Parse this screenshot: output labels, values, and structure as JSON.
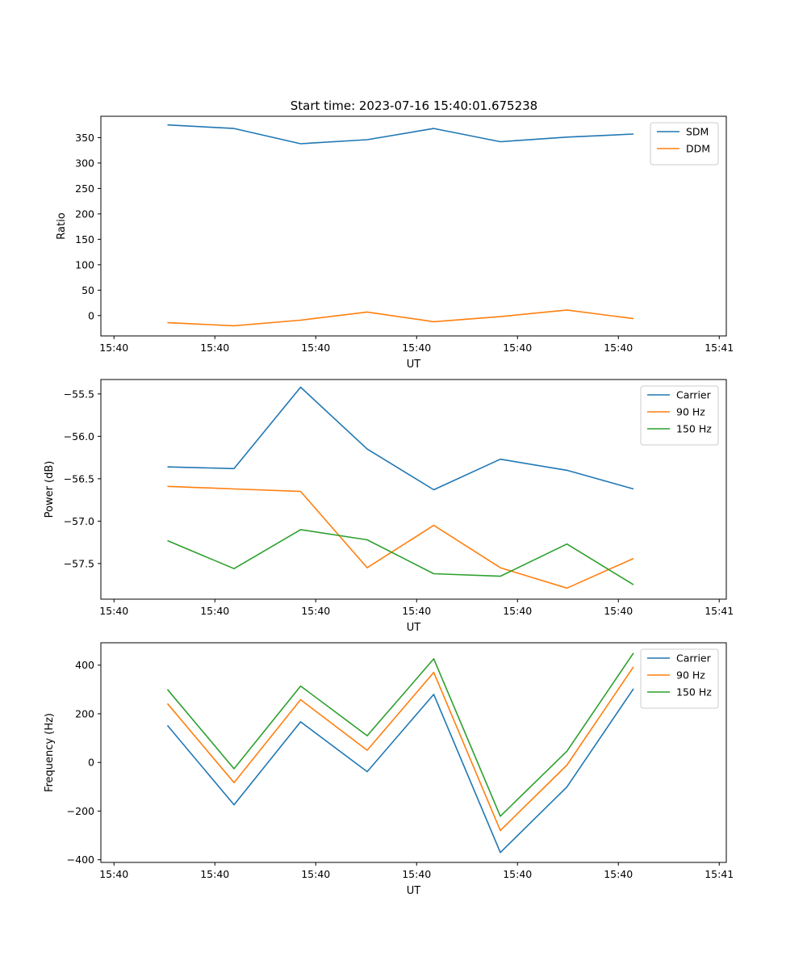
{
  "figure": {
    "title": "Start time: 2023-07-16 15:40:01.675238"
  },
  "chart_data": [
    {
      "type": "line",
      "title": "Start time: 2023-07-16 15:40:01.675238",
      "xlabel": "UT",
      "ylabel": "Ratio",
      "x": [
        0.66,
        1.32,
        1.98,
        2.64,
        3.3,
        3.96,
        4.62,
        5.28
      ],
      "xlim": [
        0,
        6.2
      ],
      "xticks": [
        0.13,
        1.13,
        2.13,
        3.13,
        4.13,
        5.13,
        6.13
      ],
      "xtick_labels": [
        "15:40",
        "15:40",
        "15:40",
        "15:40",
        "15:40",
        "15:40",
        "15:41"
      ],
      "ylim": [
        -40,
        392
      ],
      "yticks": [
        0,
        50,
        100,
        150,
        200,
        250,
        300,
        350
      ],
      "ytick_labels": [
        "0",
        "50",
        "100",
        "150",
        "200",
        "250",
        "300",
        "350"
      ],
      "legend_position": "top-right",
      "series": [
        {
          "name": "SDM",
          "color": "#1f77b4",
          "values": [
            375,
            368,
            338,
            346,
            368,
            342,
            351,
            357
          ]
        },
        {
          "name": "DDM",
          "color": "#ff7f0e",
          "values": [
            -14,
            -20,
            -9,
            7,
            -12,
            -2,
            11,
            -6
          ]
        }
      ]
    },
    {
      "type": "line",
      "title": "",
      "xlabel": "UT",
      "ylabel": "Power (dB)",
      "x": [
        0.66,
        1.32,
        1.98,
        2.64,
        3.3,
        3.96,
        4.62,
        5.28
      ],
      "xlim": [
        0,
        6.2
      ],
      "xticks": [
        0.13,
        1.13,
        2.13,
        3.13,
        4.13,
        5.13,
        6.13
      ],
      "xtick_labels": [
        "15:40",
        "15:40",
        "15:40",
        "15:40",
        "15:40",
        "15:40",
        "15:41"
      ],
      "ylim": [
        -57.92,
        -55.33
      ],
      "yticks": [
        -57.5,
        -57.0,
        -56.5,
        -56.0,
        -55.5
      ],
      "ytick_labels": [
        "−57.5",
        "−57.0",
        "−56.5",
        "−56.0",
        "−55.5"
      ],
      "legend_position": "top-right",
      "series": [
        {
          "name": "Carrier",
          "color": "#1f77b4",
          "values": [
            -56.36,
            -56.38,
            -55.42,
            -56.15,
            -56.63,
            -56.27,
            -56.4,
            -56.62
          ]
        },
        {
          "name": "90 Hz",
          "color": "#ff7f0e",
          "values": [
            -56.59,
            -56.62,
            -56.65,
            -57.55,
            -57.05,
            -57.55,
            -57.79,
            -57.44
          ]
        },
        {
          "name": "150 Hz",
          "color": "#2ca02c",
          "values": [
            -57.23,
            -57.56,
            -57.1,
            -57.22,
            -57.62,
            -57.65,
            -57.27,
            -57.75
          ]
        }
      ]
    },
    {
      "type": "line",
      "title": "",
      "xlabel": "UT",
      "ylabel": "Frequency (Hz)",
      "x": [
        0.66,
        1.32,
        1.98,
        2.64,
        3.3,
        3.96,
        4.62,
        5.28
      ],
      "xlim": [
        0,
        6.2
      ],
      "xticks": [
        0.13,
        1.13,
        2.13,
        3.13,
        4.13,
        5.13,
        6.13
      ],
      "xtick_labels": [
        "15:40",
        "15:40",
        "15:40",
        "15:40",
        "15:40",
        "15:40",
        "15:41"
      ],
      "ylim": [
        -411,
        492
      ],
      "yticks": [
        -400,
        -200,
        0,
        200,
        400
      ],
      "ytick_labels": [
        "−400",
        "−200",
        "0",
        "200",
        "400"
      ],
      "legend_position": "top-right",
      "series": [
        {
          "name": "Carrier",
          "color": "#1f77b4",
          "values": [
            152,
            -174,
            167,
            -38,
            280,
            -370,
            -101,
            303
          ]
        },
        {
          "name": "90 Hz",
          "color": "#ff7f0e",
          "values": [
            242,
            -83,
            258,
            50,
            370,
            -280,
            -11,
            393
          ]
        },
        {
          "name": "150 Hz",
          "color": "#2ca02c",
          "values": [
            300,
            -26,
            314,
            110,
            426,
            -221,
            46,
            450
          ]
        }
      ]
    }
  ]
}
